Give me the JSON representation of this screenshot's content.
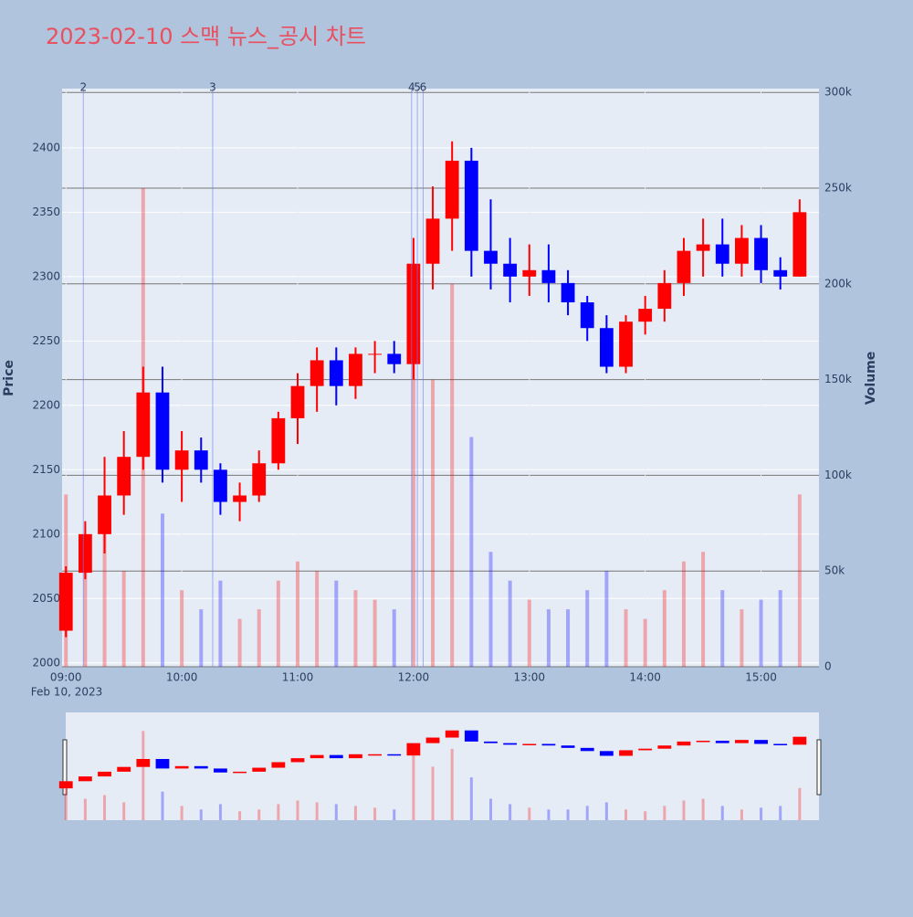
{
  "chart_data": {
    "type": "candlestick",
    "title": "2023-02-10 스맥 뉴스_공시 차트",
    "y_label": "Price",
    "y2_label": "Volume",
    "x_date_label": "Feb 10, 2023",
    "increasing_color": "#ff0000",
    "decreasing_color": "#0000ff",
    "x": [
      "09:00",
      "09:10",
      "09:20",
      "09:30",
      "09:40",
      "09:50",
      "10:00",
      "10:10",
      "10:20",
      "10:30",
      "10:40",
      "10:50",
      "11:00",
      "11:10",
      "11:20",
      "11:30",
      "11:40",
      "11:50",
      "12:00",
      "12:10",
      "12:20",
      "12:30",
      "12:40",
      "12:50",
      "13:00",
      "13:10",
      "13:20",
      "13:30",
      "13:40",
      "13:50",
      "14:00",
      "14:10",
      "14:20",
      "14:30",
      "14:40",
      "14:50",
      "15:00",
      "15:10",
      "15:20"
    ],
    "open": [
      2025,
      2070,
      2100,
      2130,
      2160,
      2210,
      2150,
      2165,
      2150,
      2125,
      2130,
      2155,
      2190,
      2215,
      2235,
      2215,
      2240,
      2240,
      2232,
      2310,
      2345,
      2390,
      2320,
      2310,
      2300,
      2305,
      2295,
      2280,
      2260,
      2230,
      2265,
      2275,
      2295,
      2320,
      2325,
      2310,
      2330,
      2305,
      2300
    ],
    "high": [
      2075,
      2110,
      2160,
      2180,
      2230,
      2230,
      2180,
      2175,
      2155,
      2140,
      2165,
      2195,
      2225,
      2245,
      2245,
      2245,
      2250,
      2250,
      2330,
      2370,
      2405,
      2400,
      2360,
      2330,
      2325,
      2325,
      2305,
      2285,
      2270,
      2270,
      2285,
      2305,
      2330,
      2345,
      2345,
      2340,
      2340,
      2315,
      2360
    ],
    "low": [
      2020,
      2065,
      2085,
      2115,
      2150,
      2140,
      2125,
      2140,
      2115,
      2110,
      2125,
      2150,
      2170,
      2195,
      2200,
      2205,
      2225,
      2225,
      2220,
      2290,
      2320,
      2300,
      2290,
      2280,
      2285,
      2280,
      2270,
      2250,
      2225,
      2225,
      2255,
      2265,
      2285,
      2300,
      2300,
      2300,
      2295,
      2290,
      2300
    ],
    "close": [
      2070,
      2100,
      2130,
      2160,
      2210,
      2150,
      2165,
      2150,
      2125,
      2130,
      2155,
      2190,
      2215,
      2235,
      2215,
      2240,
      2240,
      2232,
      2310,
      2345,
      2390,
      2320,
      2310,
      2300,
      2305,
      2295,
      2280,
      2260,
      2230,
      2265,
      2275,
      2295,
      2320,
      2325,
      2310,
      2330,
      2305,
      2300,
      2350
    ],
    "volume": [
      90000,
      60000,
      70000,
      50000,
      250000,
      80000,
      40000,
      30000,
      45000,
      25000,
      30000,
      45000,
      55000,
      50000,
      45000,
      40000,
      35000,
      30000,
      200000,
      150000,
      200000,
      120000,
      60000,
      45000,
      35000,
      30000,
      30000,
      40000,
      50000,
      30000,
      25000,
      40000,
      55000,
      60000,
      40000,
      30000,
      35000,
      40000,
      90000
    ],
    "events": [
      {
        "label": "2",
        "x": "09:09"
      },
      {
        "label": "3",
        "x": "10:16"
      },
      {
        "label": "4",
        "x": "11:59"
      },
      {
        "label": "5",
        "x": "12:02"
      },
      {
        "label": "6",
        "x": "12:05"
      }
    ],
    "xlim": [
      "08:58",
      "15:30"
    ],
    "xticks": [
      "09:00",
      "10:00",
      "11:00",
      "12:00",
      "13:00",
      "14:00",
      "15:00"
    ],
    "ylim": [
      1997,
      2446
    ],
    "yticks": [
      2000,
      2050,
      2100,
      2150,
      2200,
      2250,
      2300,
      2350,
      2400
    ],
    "y2lim": [
      0,
      302000
    ],
    "y2ticks": [
      0,
      {
        "value": 50000,
        "label": "50k"
      },
      {
        "value": 100000,
        "label": "100k"
      },
      {
        "value": 150000,
        "label": "150k"
      },
      {
        "value": 200000,
        "label": "200k"
      },
      {
        "value": 250000,
        "label": "250k"
      },
      {
        "value": 300000,
        "label": "300k"
      }
    ],
    "grid": true
  }
}
